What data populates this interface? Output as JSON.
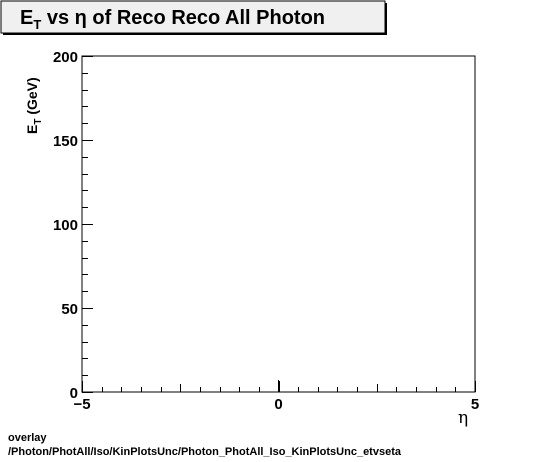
{
  "chart_data": {
    "type": "scatter",
    "title": {
      "main": "E",
      "sub": "T",
      "rest": " vs  η of Reco Reco All Photon"
    },
    "xlabel": "η",
    "ylabel": {
      "main": "E",
      "sub": "T",
      "rest": " (GeV)"
    },
    "xlim": [
      -5,
      5
    ],
    "ylim": [
      0,
      200
    ],
    "x_ticks": [
      -5,
      0,
      5
    ],
    "y_ticks": [
      0,
      50,
      100,
      150,
      200
    ],
    "x_tick_labels": [
      "−5",
      "0",
      "5"
    ],
    "y_tick_labels": [
      "0",
      "50",
      "100",
      "150",
      "200"
    ],
    "series": [],
    "grid": false
  },
  "footer": {
    "line1": "overlay",
    "line2": "/Photon/PhotAll/Iso/KinPlotsUnc/Photon_PhotAll_Iso_KinPlotsUnc_etvseta"
  }
}
